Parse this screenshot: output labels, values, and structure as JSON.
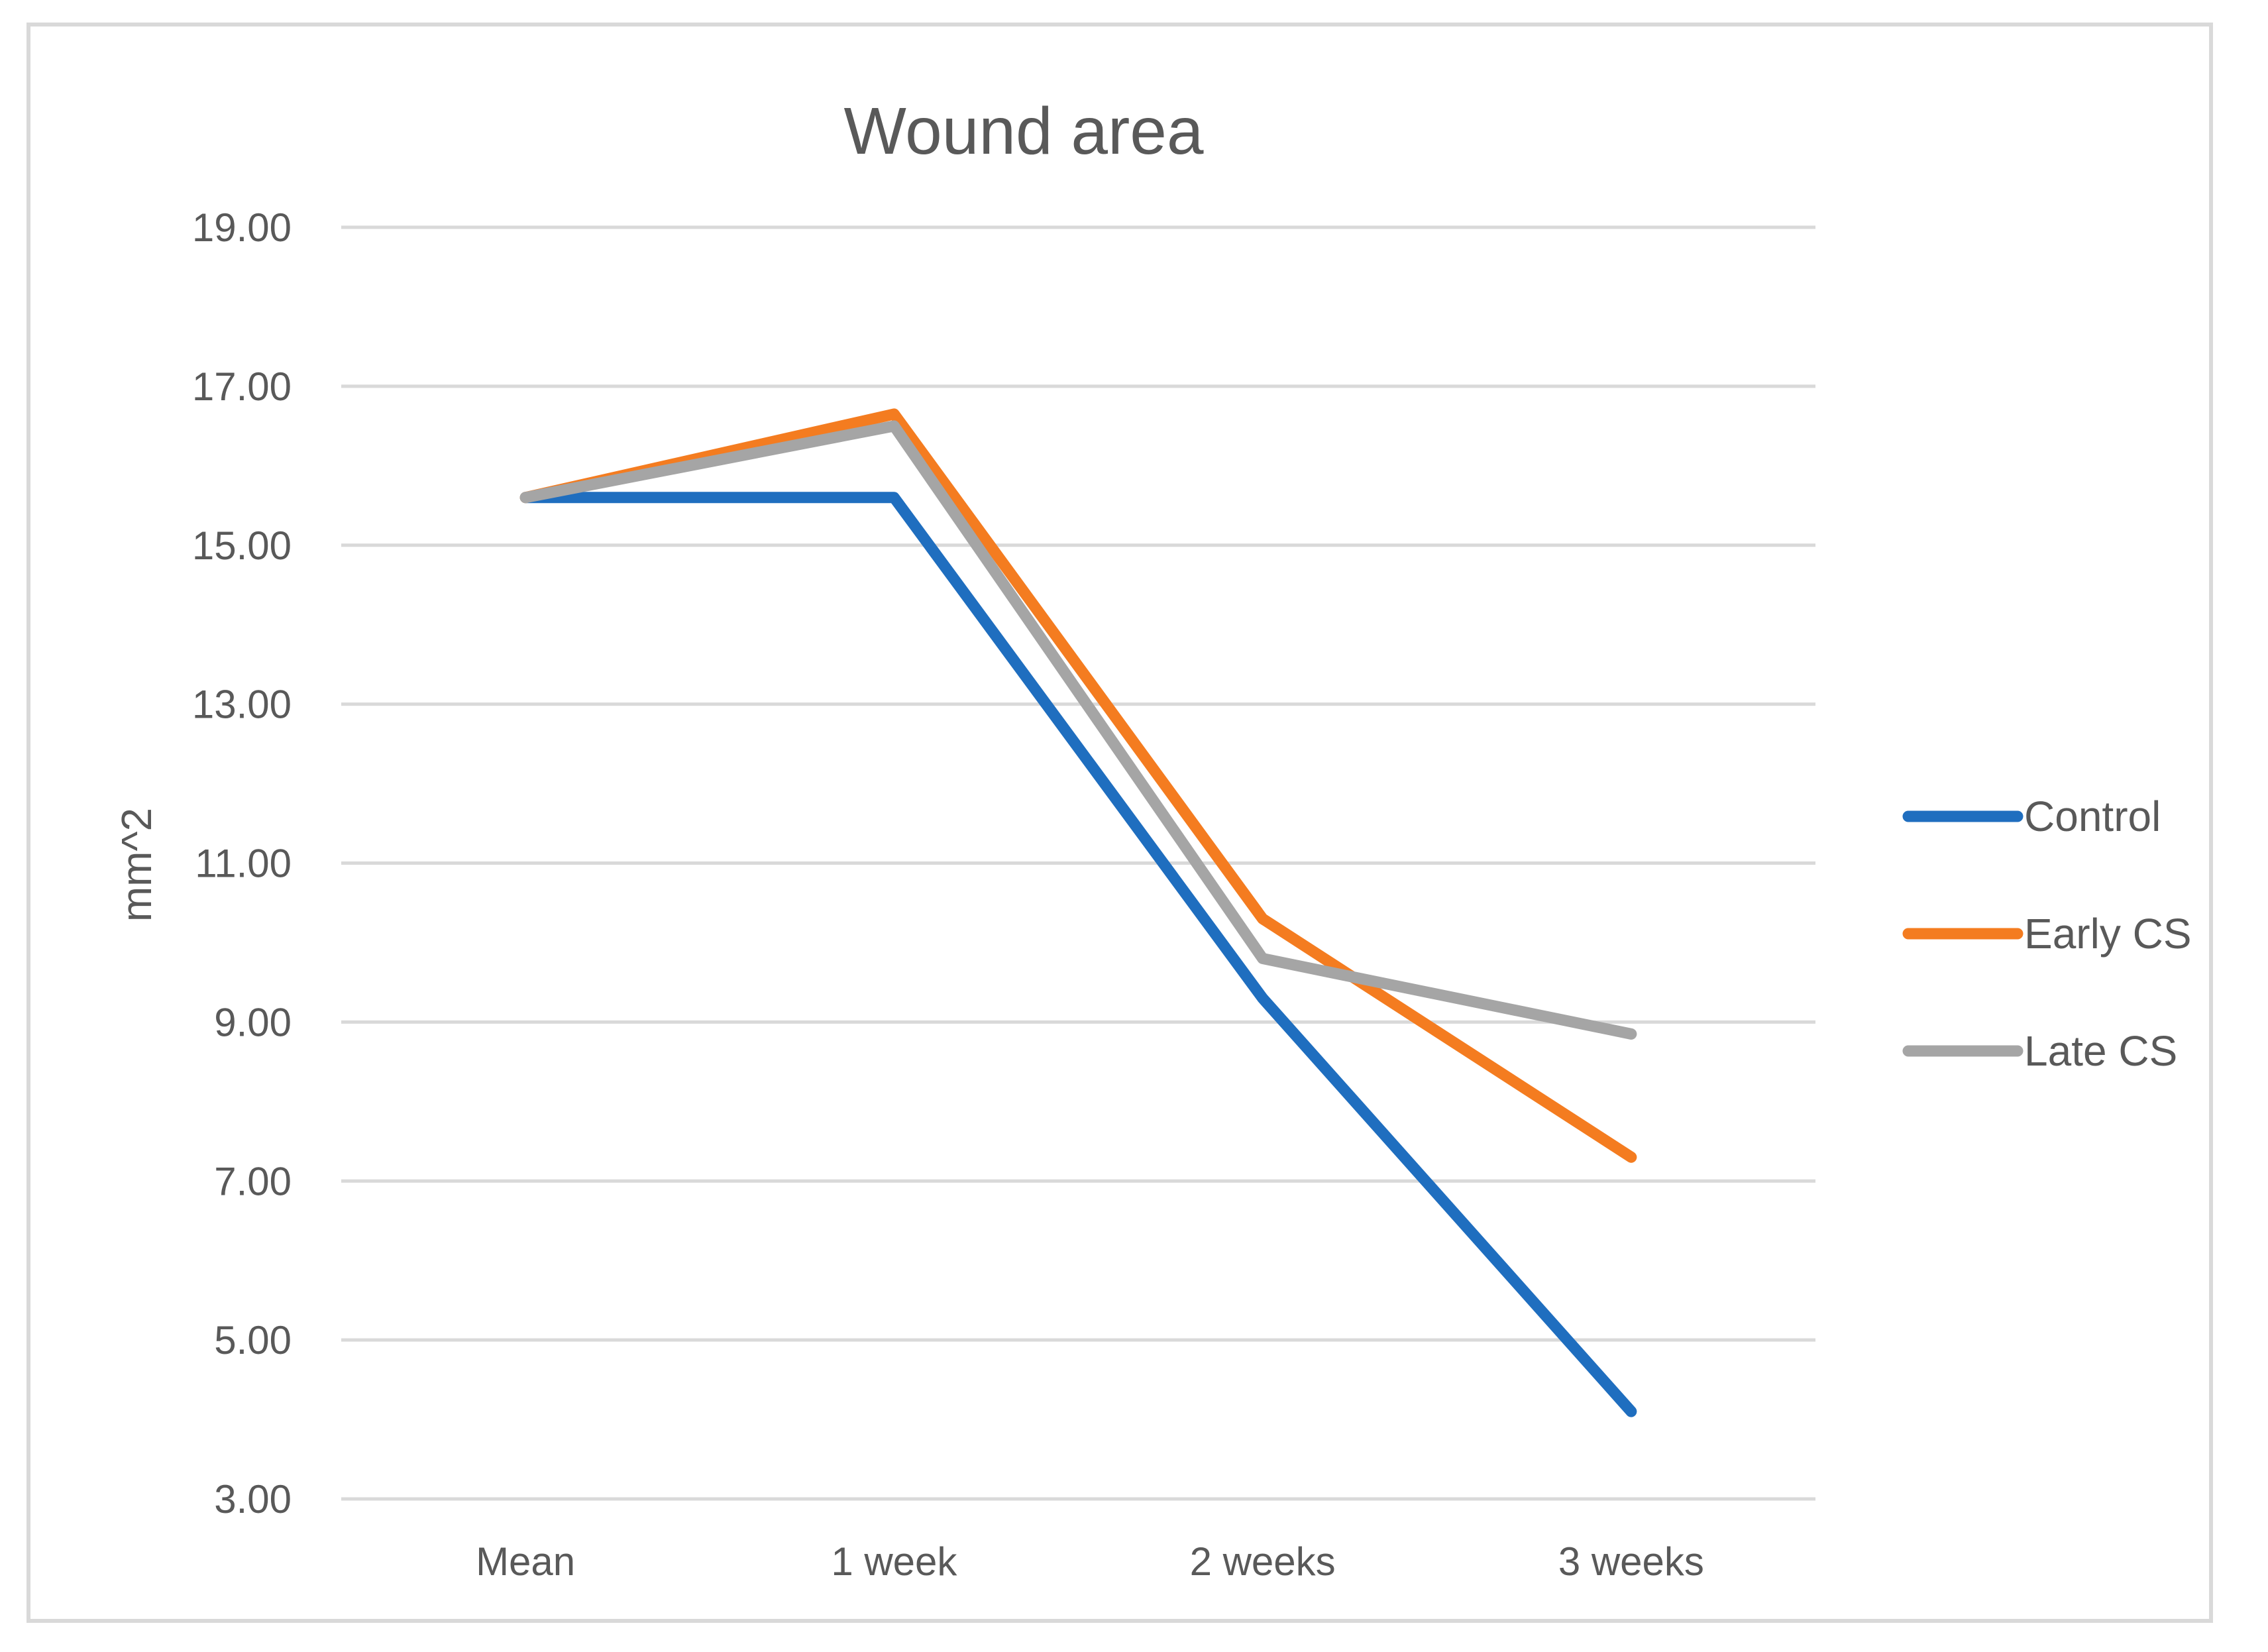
{
  "chart_data": {
    "type": "line",
    "title": "Wound area",
    "xlabel": "",
    "ylabel": "mm^2",
    "categories": [
      "Mean",
      "1 week",
      "2 weeks",
      "3 weeks"
    ],
    "ylim": [
      3,
      19
    ],
    "yticks": [
      3,
      5,
      7,
      9,
      11,
      13,
      15,
      17,
      19
    ],
    "ytick_labels": [
      "3.00",
      "5.00",
      "7.00",
      "9.00",
      "11.00",
      "13.00",
      "15.00",
      "17.00",
      "19.00"
    ],
    "grid": true,
    "legend_position": "right",
    "series": [
      {
        "name": "Control",
        "color": "#1f6ebf",
        "values": [
          15.6,
          15.6,
          9.3,
          4.1
        ]
      },
      {
        "name": "Early CS",
        "color": "#f47c20",
        "values": [
          15.6,
          16.65,
          10.3,
          7.3
        ]
      },
      {
        "name": "Late CS",
        "color": "#a5a5a5",
        "values": [
          15.6,
          16.5,
          9.8,
          8.85
        ]
      }
    ]
  }
}
